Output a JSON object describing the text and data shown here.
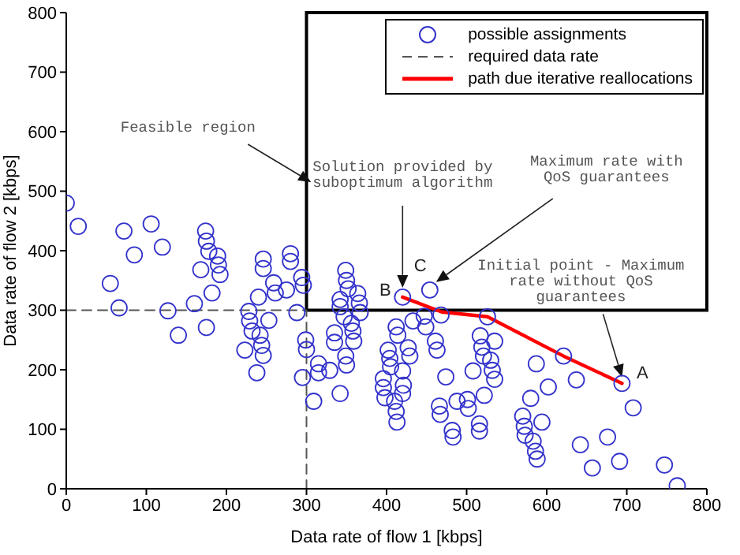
{
  "chart_data": {
    "type": "scatter",
    "xlabel": "Data rate of flow 1 [kbps]",
    "ylabel": "Data rate of flow 2 [kbps]",
    "xlim": [
      0,
      800
    ],
    "xticks": [
      0,
      100,
      200,
      300,
      400,
      500,
      600,
      700,
      800
    ],
    "ylim": [
      0,
      800
    ],
    "yticks": [
      0,
      100,
      200,
      300,
      400,
      500,
      600,
      700,
      800
    ],
    "grid": false,
    "legend": "top right",
    "marker": "circle",
    "series": [
      {
        "name": "possible assignments",
        "color": "#3333cc",
        "x": [
          0,
          15,
          72,
          106,
          85,
          120,
          174,
          175,
          178,
          189,
          190,
          192,
          168,
          182,
          160,
          66,
          55,
          127,
          140,
          175,
          246,
          246,
          280,
          280,
          294,
          296,
          259,
          261,
          275,
          240,
          288,
          228,
          229,
          232,
          253,
          242,
          244,
          246,
          223,
          238,
          295,
          299,
          300,
          315,
          315,
          329,
          309,
          335,
          335,
          342,
          349,
          350,
          349,
          350,
          352,
          342,
          342,
          347,
          364,
          366,
          367,
          356,
          358,
          359,
          420,
          454,
          694,
          412,
          414,
          402,
          404,
          405,
          396,
          396,
          398,
          410,
          412,
          413,
          420,
          421,
          420,
          427,
          429,
          433,
          447,
          449,
          468,
          461,
          463,
          474,
          466,
          467,
          482,
          483,
          488,
          501,
          502,
          508,
          516,
          516,
          522,
          517,
          519,
          521,
          535,
          530,
          532,
          535,
          526,
          570,
          572,
          573,
          583,
          586,
          588,
          580,
          587,
          594,
          602,
          621,
          637,
          642,
          657,
          676,
          691,
          708,
          747,
          763
        ],
        "values": [
          480,
          441,
          433,
          445,
          393,
          406,
          433,
          416,
          399,
          391,
          376,
          360,
          368,
          329,
          311,
          304,
          345,
          299,
          258,
          271,
          386,
          370,
          395,
          382,
          355,
          342,
          346,
          329,
          334,
          322,
          296,
          298,
          282,
          265,
          283,
          258,
          241,
          224,
          233,
          195,
          187,
          250,
          234,
          210,
          195,
          199,
          147,
          262,
          246,
          160,
          223,
          208,
          367,
          350,
          336,
          318,
          306,
          289,
          328,
          312,
          296,
          278,
          265,
          248,
          322,
          334,
          177,
          272,
          258,
          233,
          219,
          205,
          185,
          170,
          153,
          147,
          130,
          112,
          198,
          174,
          160,
          237,
          223,
          282,
          290,
          272,
          292,
          248,
          233,
          188,
          139,
          125,
          98,
          87,
          147,
          150,
          135,
          198,
          109,
          97,
          157,
          257,
          238,
          223,
          248,
          216,
          199,
          184,
          289,
          122,
          105,
          90,
          80,
          63,
          50,
          152,
          210,
          112,
          171,
          223,
          183,
          74,
          35,
          87,
          46,
          136,
          40,
          5
        ]
      },
      {
        "name": "required data rate",
        "type": "line",
        "color": "#555555",
        "line_style": "dashed",
        "marker": "none",
        "x": [
          0,
          300,
          300
        ],
        "values": [
          300,
          300,
          0
        ]
      },
      {
        "name": "path due iterative reallocations",
        "type": "line",
        "color": "#ff0000",
        "line_style": "solid",
        "marker": "none",
        "x": [
          420,
          469,
          526,
          621,
          694
        ],
        "values": [
          322,
          297,
          289,
          223,
          177
        ]
      }
    ],
    "annotations": [
      "Feasible region",
      "Solution provided by\nsuboptimum algorithm",
      "Maximum rate with\nQoS guarantees",
      "Initial point - Maximum\nrate without QoS\nguarantees",
      {
        "text": "A",
        "x": 694,
        "y": 177
      },
      {
        "text": "B",
        "x": 420,
        "y": 322
      },
      {
        "text": "C",
        "x": 454,
        "y": 334
      }
    ]
  }
}
